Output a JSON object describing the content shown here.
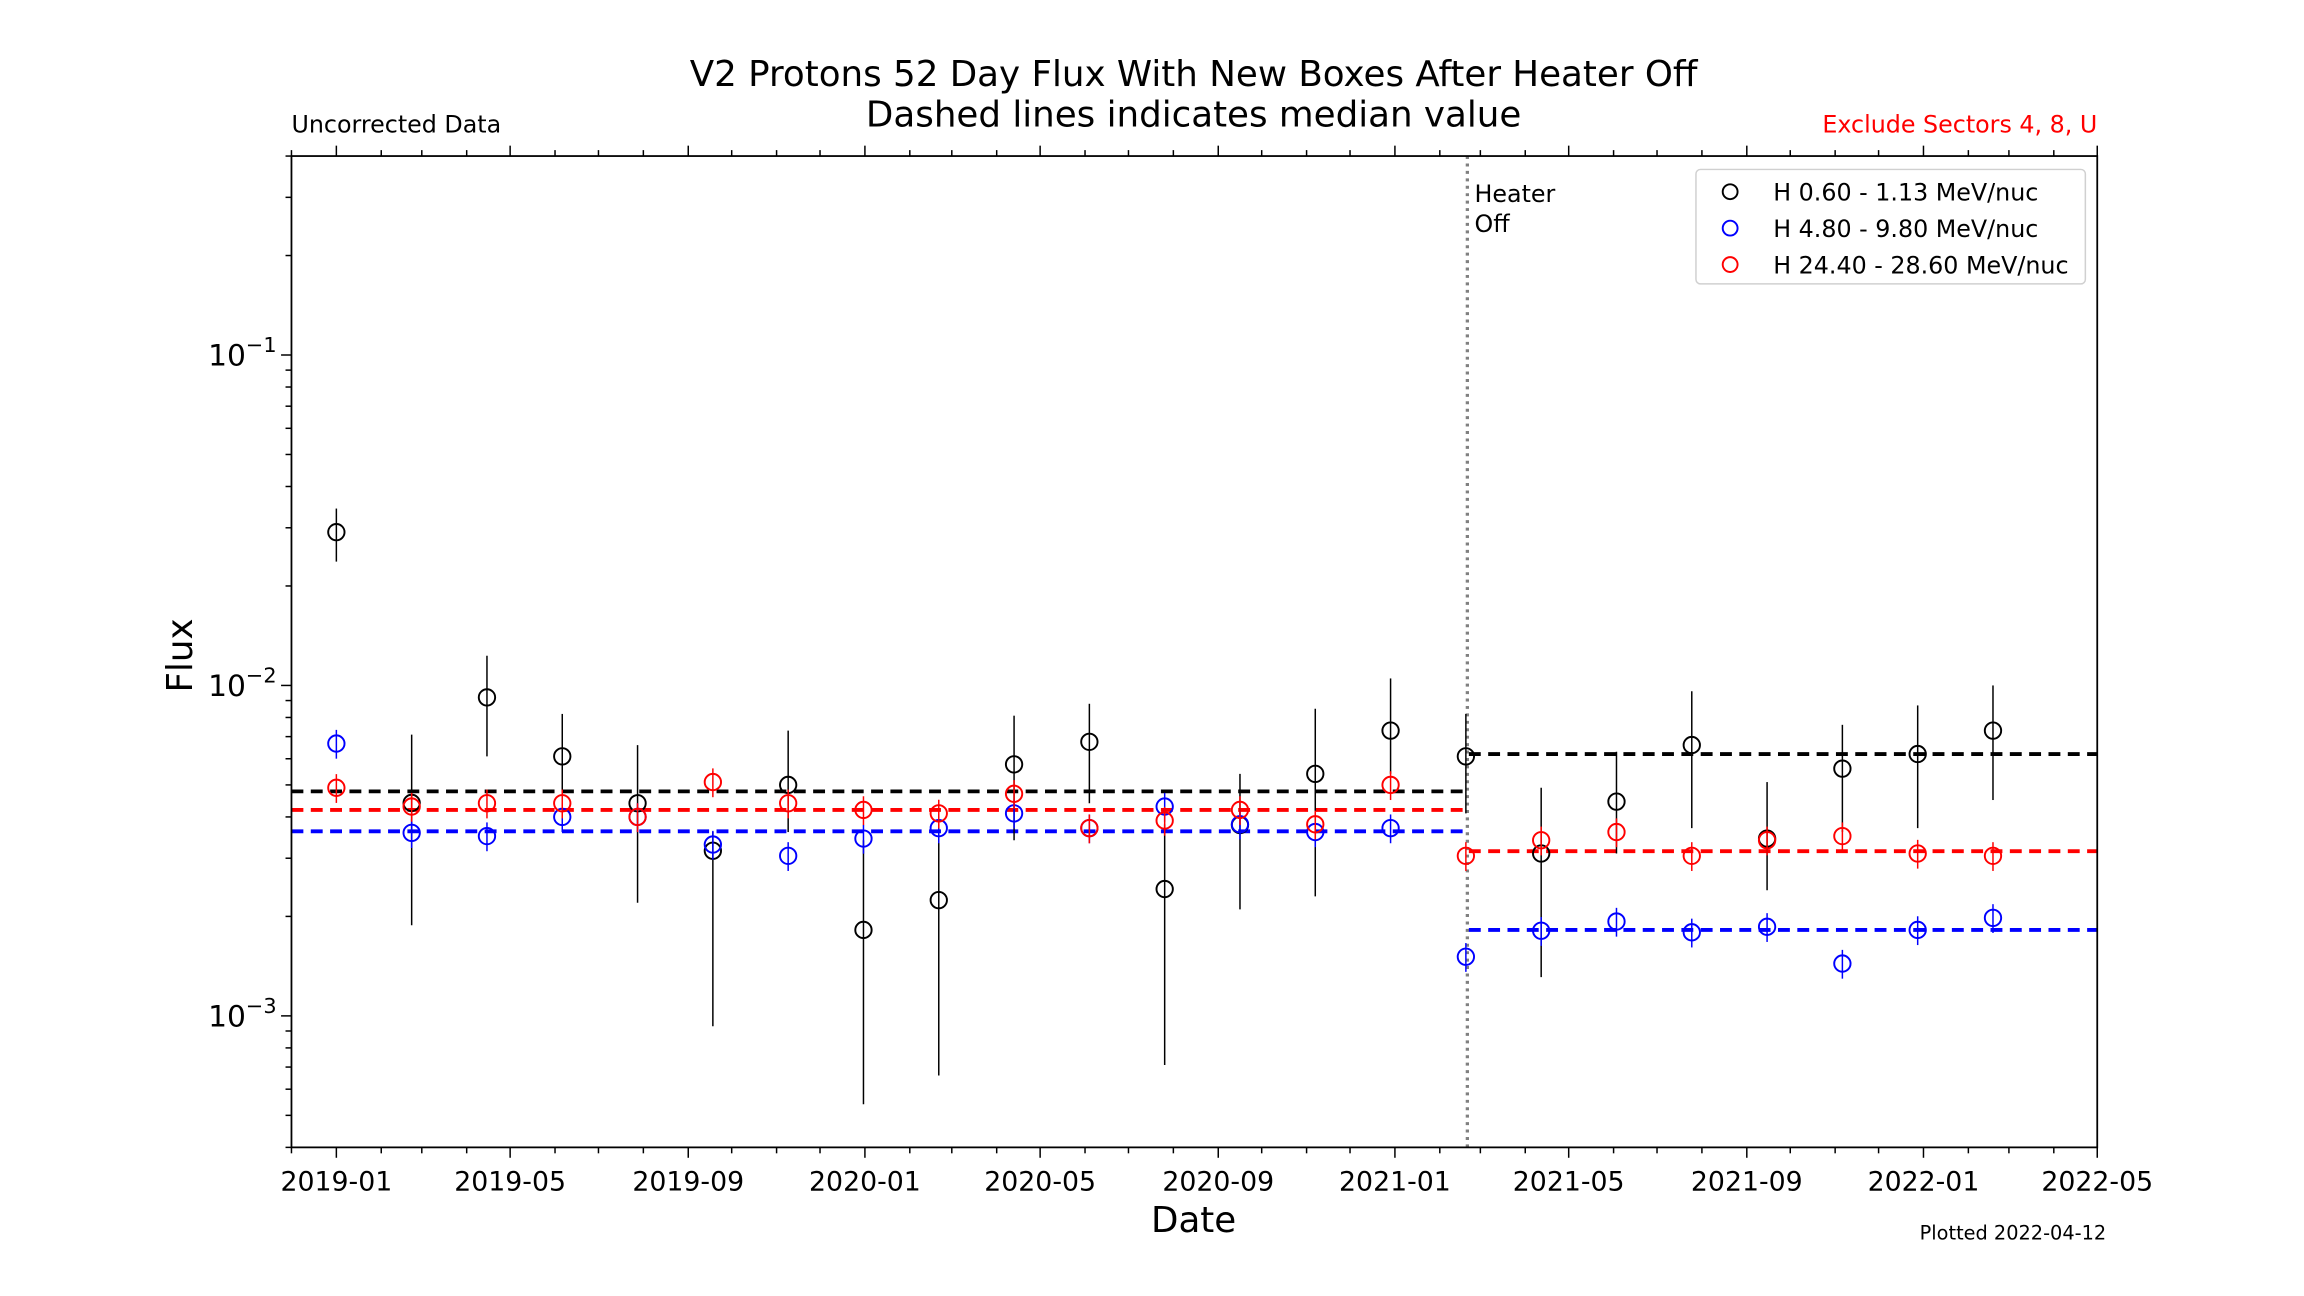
{
  "chart_data": {
    "type": "scatter",
    "title": "V2 Protons 52 Day Flux With New Boxes After Heater Off",
    "subtitle": "Dashed lines indicates median value",
    "top_left_note": "Uncorrected Data",
    "top_right_note": "Exclude Sectors 4, 8, U",
    "top_right_note_color": "#ff0000",
    "footer_note": "Plotted 2022-04-12",
    "xlabel": "Date",
    "ylabel": "Flux",
    "yscale": "log",
    "xlim": [
      "2018-12-01",
      "2022-05-01"
    ],
    "ylim": [
      0.0004,
      0.4
    ],
    "x_tick_labels": [
      "2019-01",
      "2019-05",
      "2019-09",
      "2020-01",
      "2020-05",
      "2020-09",
      "2021-01",
      "2021-05",
      "2021-09",
      "2022-01",
      "2022-05"
    ],
    "y_tick_labels": [
      {
        "base": "10",
        "exp": "−3",
        "value": 0.001
      },
      {
        "base": "10",
        "exp": "−2",
        "value": 0.01
      },
      {
        "base": "10",
        "exp": "−1",
        "value": 0.1
      }
    ],
    "grid": false,
    "legend_position": "top-right",
    "annotation": {
      "label_line1": "Heater",
      "label_line2": "Off",
      "date": "2021-02-19",
      "color": "#808080"
    },
    "x": [
      "2019-01-01",
      "2019-02-22",
      "2019-04-15",
      "2019-06-06",
      "2019-07-28",
      "2019-09-18",
      "2019-11-09",
      "2019-12-31",
      "2020-02-21",
      "2020-04-13",
      "2020-06-04",
      "2020-07-26",
      "2020-09-16",
      "2020-11-07",
      "2020-12-29",
      "2021-02-19",
      "2021-04-12",
      "2021-06-03",
      "2021-07-25",
      "2021-09-15",
      "2021-11-06",
      "2021-12-28",
      "2022-02-18"
    ],
    "series": [
      {
        "name": "H 0.60 - 1.13 MeV/nuc",
        "color": "#000000",
        "values": [
          0.0291,
          0.00441,
          0.0092,
          0.0061,
          0.0044,
          0.00316,
          0.005,
          0.00182,
          0.00224,
          0.00577,
          0.00675,
          0.00242,
          0.00378,
          0.0054,
          0.0073,
          0.0061,
          0.0031,
          0.00445,
          0.0066,
          0.00344,
          0.0056,
          0.0062,
          0.0073
        ],
        "err_high": [
          0.0343,
          0.0071,
          0.0123,
          0.0082,
          0.0066,
          0.0036,
          0.0073,
          0.0034,
          0.004,
          0.0081,
          0.0088,
          0.0038,
          0.0054,
          0.0085,
          0.0105,
          0.0082,
          0.0049,
          0.0063,
          0.0096,
          0.0051,
          0.0076,
          0.0087,
          0.01
        ],
        "err_low": [
          0.0237,
          0.00188,
          0.0061,
          0.0046,
          0.0022,
          0.00093,
          0.0036,
          0.00054,
          0.00066,
          0.0034,
          0.0044,
          0.00071,
          0.0021,
          0.0023,
          0.0054,
          0.0041,
          0.00131,
          0.0031,
          0.0037,
          0.0024,
          0.0036,
          0.0037,
          0.0045
        ],
        "median_before": 0.00478,
        "median_after": 0.0062
      },
      {
        "name": "H 4.80 - 9.80 MeV/nuc",
        "color": "#0000ff",
        "values": [
          0.00667,
          0.00358,
          0.0035,
          0.004,
          0.004,
          0.0033,
          0.00305,
          0.00344,
          0.0037,
          0.0041,
          0.0037,
          0.0043,
          0.0038,
          0.0036,
          0.0037,
          0.00151,
          0.00181,
          0.00193,
          0.00179,
          0.00186,
          0.00144,
          0.00182,
          0.00198
        ],
        "rel_err": 0.1,
        "median_before": 0.00362,
        "median_after": 0.00182
      },
      {
        "name": "H 24.40 - 28.60 MeV/nuc",
        "color": "#ff0000",
        "values": [
          0.0049,
          0.0043,
          0.0044,
          0.0044,
          0.004,
          0.0051,
          0.0044,
          0.0042,
          0.0041,
          0.0047,
          0.0037,
          0.0039,
          0.0042,
          0.0038,
          0.005,
          0.00305,
          0.0034,
          0.0036,
          0.00305,
          0.0034,
          0.0035,
          0.0031,
          0.00305
        ],
        "rel_err": 0.1,
        "median_before": 0.0042,
        "median_after": 0.00315
      }
    ]
  }
}
